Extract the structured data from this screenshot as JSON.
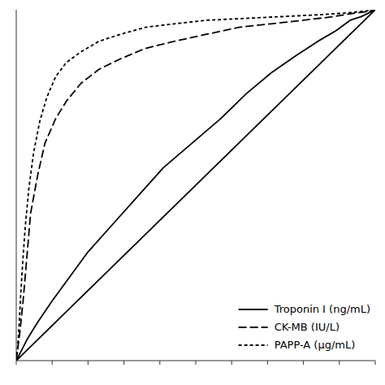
{
  "chart_data": {
    "type": "line",
    "title": "",
    "series": [
      {
        "color": "#000000",
        "line_style": "solid",
        "x": [
          0.0,
          1.0
        ],
        "values": [
          0.0,
          1.0
        ]
      },
      {
        "name": "Troponin I (ng/mL)",
        "color": "#000000",
        "line_style": "solid",
        "x": [
          0.0,
          0.01,
          0.03,
          0.06,
          0.1,
          0.15,
          0.2,
          0.27,
          0.34,
          0.41,
          0.49,
          0.57,
          0.64,
          0.71,
          0.78,
          0.84,
          0.89,
          0.93,
          0.96,
          0.98,
          1.0
        ],
        "values": [
          0.0,
          0.02,
          0.06,
          0.11,
          0.17,
          0.24,
          0.31,
          0.39,
          0.47,
          0.55,
          0.62,
          0.69,
          0.76,
          0.82,
          0.87,
          0.91,
          0.94,
          0.97,
          0.98,
          0.99,
          1.0
        ]
      },
      {
        "name": "CK-MB (IU/L)",
        "color": "#000000",
        "line_style": "dashed",
        "x": [
          0.0,
          0.01,
          0.02,
          0.03,
          0.04,
          0.06,
          0.08,
          0.11,
          0.14,
          0.18,
          0.23,
          0.29,
          0.36,
          0.44,
          0.53,
          0.62,
          0.71,
          0.8,
          0.88,
          0.94,
          0.98,
          1.0
        ],
        "values": [
          0.0,
          0.08,
          0.18,
          0.3,
          0.42,
          0.53,
          0.62,
          0.69,
          0.74,
          0.79,
          0.83,
          0.86,
          0.89,
          0.91,
          0.93,
          0.95,
          0.96,
          0.97,
          0.98,
          0.99,
          0.995,
          1.0
        ]
      },
      {
        "name": "PAPP-A (μg/mL)",
        "color": "#000000",
        "line_style": "dotted",
        "x": [
          0.0,
          0.004,
          0.008,
          0.012,
          0.018,
          0.025,
          0.035,
          0.048,
          0.065,
          0.085,
          0.11,
          0.14,
          0.18,
          0.23,
          0.29,
          0.36,
          0.44,
          0.53,
          0.63,
          0.73,
          0.83,
          0.91,
          0.97,
          1.0
        ],
        "values": [
          0.0,
          0.04,
          0.1,
          0.18,
          0.28,
          0.38,
          0.49,
          0.59,
          0.68,
          0.75,
          0.81,
          0.85,
          0.88,
          0.91,
          0.93,
          0.95,
          0.96,
          0.97,
          0.975,
          0.98,
          0.985,
          0.99,
          0.996,
          1.0
        ]
      }
    ],
    "xlim": [
      0,
      1
    ],
    "ylim": [
      0,
      1
    ],
    "xticks": [
      0,
      0.1,
      0.2,
      0.3,
      0.4,
      0.5,
      0.6,
      0.7,
      0.8,
      0.9,
      1
    ],
    "tick_labels": false,
    "grid": false,
    "legend": "lower right"
  }
}
